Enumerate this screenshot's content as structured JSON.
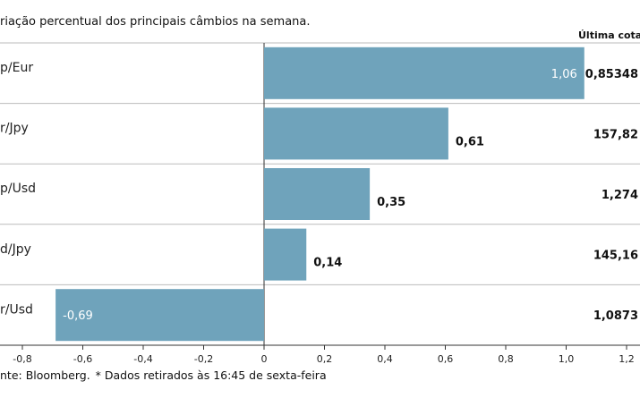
{
  "subtitle": "riação percentual dos principais câmbios na semana.",
  "quote_header": "Última cotaç",
  "source": "nte: Bloomberg.",
  "source_note": "* Dados retirados às 16:45 de sexta-feira",
  "colors": {
    "bar": "#6fa3bb",
    "bar_stroke": "#5a8ea8",
    "grid": "#bbbbbb",
    "axis": "#333333"
  },
  "chart_data": {
    "type": "bar",
    "orientation": "horizontal",
    "categories": [
      "p/Eur",
      "r/Jpy",
      "p/Usd",
      "d/Jpy",
      "r/Usd"
    ],
    "values": [
      1.06,
      0.61,
      0.35,
      0.14,
      -0.69
    ],
    "value_labels": [
      "1,06",
      "0,61",
      "0,35",
      "0,14",
      "-0,69"
    ],
    "label_inside": [
      true,
      false,
      false,
      false,
      true
    ],
    "last_quotes": [
      "0,85348",
      "157,82",
      "1,274",
      "145,16",
      "1,0873"
    ],
    "xlim": [
      -0.8,
      1.2
    ],
    "xticks": [
      -0.8,
      -0.6,
      -0.4,
      -0.2,
      0,
      0.2,
      0.4,
      0.6,
      0.8,
      1.0,
      1.2
    ],
    "xtick_labels": [
      "-0,8",
      "-0,6",
      "-0,4",
      "-0,2",
      "0",
      "0,2",
      "0,4",
      "0,6",
      "0,8",
      "1,0",
      "1,2"
    ],
    "grid": "horizontal separators between categories"
  }
}
